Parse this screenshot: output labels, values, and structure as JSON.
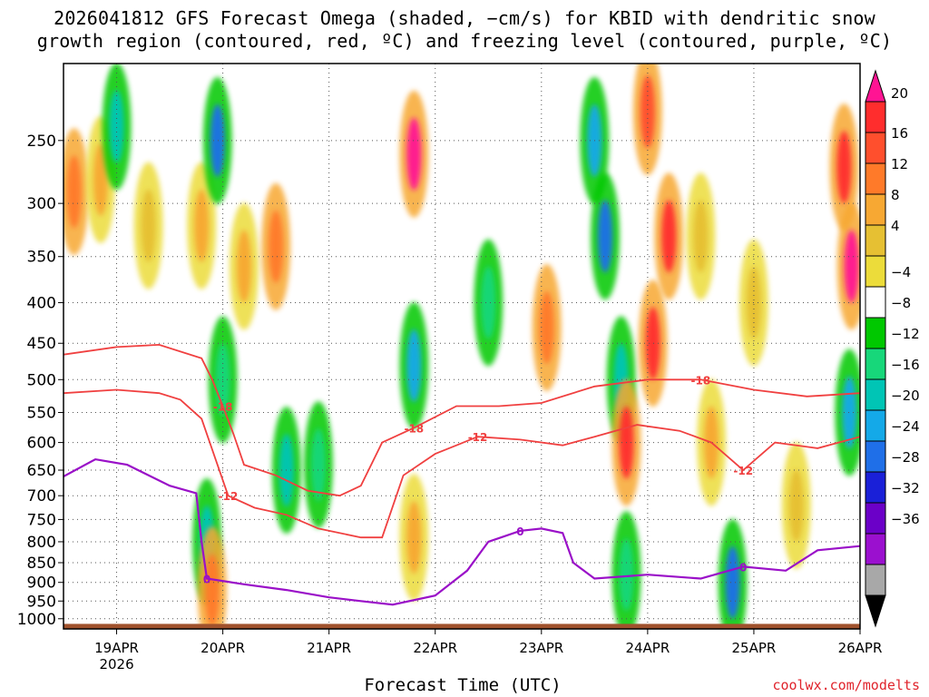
{
  "title_line1": "2026041812 GFS Forecast Omega (shaded, −cm/s) for KBID with dendritic snow",
  "title_line2": "growth region (contoured, red, ºC) and freezing level (contoured, purple, ºC)",
  "credit": "coolwx.com/modelts",
  "chart_data": {
    "type": "heatmap",
    "title": "2026041812 GFS Forecast Omega (shaded, −cm/s) for KBID with dendritic snow growth region (contoured, red, ºC) and freezing level (contoured, purple, ºC)",
    "xlabel": "Forecast Time (UTC)",
    "ylabel": "",
    "x_ticks": [
      {
        "t": 1,
        "label": "19APR",
        "sublabel": "2026"
      },
      {
        "t": 2,
        "label": "20APR"
      },
      {
        "t": 3,
        "label": "21APR"
      },
      {
        "t": 4,
        "label": "22APR"
      },
      {
        "t": 5,
        "label": "23APR"
      },
      {
        "t": 6,
        "label": "24APR"
      },
      {
        "t": 7,
        "label": "25APR"
      },
      {
        "t": 8,
        "label": "26APR"
      }
    ],
    "xlim": [
      0.5,
      8.0
    ],
    "y_ticks": [
      250,
      300,
      350,
      400,
      450,
      500,
      550,
      600,
      650,
      700,
      750,
      800,
      850,
      900,
      950,
      1000
    ],
    "ylim_hPa": [
      1030,
      200
    ],
    "colorbar": {
      "labels": [
        "20",
        "16",
        "12",
        "8",
        "4",
        "−4",
        "−8",
        "−12",
        "−16",
        "−20",
        "−24",
        "−28",
        "−32",
        "−36"
      ],
      "colors": [
        "#ff1493",
        "#ff2d2d",
        "#ff4f2d",
        "#ff7a29",
        "#f7a833",
        "#e6c033",
        "#ecdc3a",
        "#ffffff",
        "#00c800",
        "#17d77a",
        "#00c5b5",
        "#14a9e8",
        "#1f6fe8",
        "#1a20d8",
        "#6b00c8",
        "#9b10cf",
        "#a8a8a8",
        "#000000"
      ]
    },
    "omega_blobs": [
      {
        "t": 0.6,
        "p": 290,
        "v": 12
      },
      {
        "t": 0.85,
        "p": 280,
        "v": 8
      },
      {
        "t": 1.0,
        "p": 240,
        "v": -10
      },
      {
        "t": 1.3,
        "p": 320,
        "v": 6
      },
      {
        "t": 1.8,
        "p": 320,
        "v": 8
      },
      {
        "t": 1.95,
        "p": 250,
        "v": -18
      },
      {
        "t": 2.2,
        "p": 360,
        "v": 10
      },
      {
        "t": 2.5,
        "p": 340,
        "v": 12
      },
      {
        "t": 2.0,
        "p": 500,
        "v": -8
      },
      {
        "t": 1.85,
        "p": 800,
        "v": -10
      },
      {
        "t": 1.9,
        "p": 920,
        "v": 12
      },
      {
        "t": 2.6,
        "p": 650,
        "v": -10
      },
      {
        "t": 2.9,
        "p": 640,
        "v": -8
      },
      {
        "t": 3.8,
        "p": 260,
        "v": 20
      },
      {
        "t": 3.8,
        "p": 480,
        "v": -12
      },
      {
        "t": 3.8,
        "p": 790,
        "v": 10
      },
      {
        "t": 4.5,
        "p": 400,
        "v": -8
      },
      {
        "t": 5.05,
        "p": 430,
        "v": 12
      },
      {
        "t": 5.5,
        "p": 250,
        "v": -12
      },
      {
        "t": 5.6,
        "p": 330,
        "v": -16
      },
      {
        "t": 5.75,
        "p": 500,
        "v": -10
      },
      {
        "t": 5.8,
        "p": 600,
        "v": 16
      },
      {
        "t": 6.0,
        "p": 230,
        "v": 14
      },
      {
        "t": 6.05,
        "p": 450,
        "v": 16
      },
      {
        "t": 6.2,
        "p": 330,
        "v": 16
      },
      {
        "t": 5.8,
        "p": 880,
        "v": -8
      },
      {
        "t": 6.5,
        "p": 330,
        "v": 6
      },
      {
        "t": 6.6,
        "p": 600,
        "v": 8
      },
      {
        "t": 6.8,
        "p": 900,
        "v": -16
      },
      {
        "t": 7.0,
        "p": 400,
        "v": 6
      },
      {
        "t": 7.4,
        "p": 720,
        "v": 6
      },
      {
        "t": 7.85,
        "p": 270,
        "v": 16
      },
      {
        "t": 7.92,
        "p": 360,
        "v": 20
      },
      {
        "t": 7.9,
        "p": 550,
        "v": -12
      }
    ],
    "contours": [
      {
        "label": "-18",
        "color": "#f04040",
        "points": [
          [
            0.5,
            465
          ],
          [
            1.0,
            455
          ],
          [
            1.4,
            452
          ],
          [
            1.8,
            470
          ],
          [
            1.9,
            500
          ],
          [
            2.0,
            540
          ],
          [
            2.1,
            585
          ],
          [
            2.2,
            640
          ],
          [
            2.5,
            660
          ],
          [
            2.8,
            690
          ],
          [
            3.1,
            700
          ],
          [
            3.3,
            680
          ],
          [
            3.5,
            600
          ],
          [
            3.8,
            575
          ],
          [
            4.2,
            540
          ],
          [
            4.6,
            540
          ],
          [
            5.0,
            535
          ],
          [
            5.5,
            510
          ],
          [
            6.0,
            500
          ],
          [
            6.5,
            500
          ],
          [
            7.0,
            515
          ],
          [
            7.5,
            525
          ],
          [
            8.0,
            520
          ]
        ]
      },
      {
        "label": "-12",
        "color": "#f04040",
        "points": [
          [
            0.5,
            520
          ],
          [
            1.0,
            515
          ],
          [
            1.4,
            520
          ],
          [
            1.6,
            530
          ],
          [
            1.8,
            560
          ],
          [
            1.95,
            640
          ],
          [
            2.05,
            700
          ],
          [
            2.3,
            725
          ],
          [
            2.6,
            740
          ],
          [
            2.9,
            770
          ],
          [
            3.3,
            790
          ],
          [
            3.5,
            790
          ],
          [
            3.7,
            660
          ],
          [
            4.0,
            620
          ],
          [
            4.4,
            590
          ],
          [
            4.8,
            595
          ],
          [
            5.2,
            605
          ],
          [
            5.5,
            590
          ],
          [
            5.9,
            570
          ],
          [
            6.3,
            580
          ],
          [
            6.6,
            600
          ],
          [
            6.9,
            650
          ],
          [
            7.2,
            600
          ],
          [
            7.6,
            610
          ],
          [
            8.0,
            590
          ]
        ]
      },
      {
        "label": "0",
        "color": "#9a10c8",
        "points": [
          [
            0.5,
            662
          ],
          [
            0.8,
            630
          ],
          [
            1.1,
            640
          ],
          [
            1.5,
            680
          ],
          [
            1.75,
            695
          ],
          [
            1.8,
            800
          ],
          [
            1.85,
            890
          ],
          [
            2.2,
            905
          ],
          [
            2.6,
            920
          ],
          [
            3.0,
            940
          ],
          [
            3.3,
            950
          ],
          [
            3.6,
            960
          ],
          [
            4.0,
            935
          ],
          [
            4.3,
            870
          ],
          [
            4.5,
            800
          ],
          [
            4.8,
            775
          ],
          [
            5.0,
            770
          ],
          [
            5.2,
            780
          ],
          [
            5.3,
            850
          ],
          [
            5.5,
            890
          ],
          [
            6.0,
            880
          ],
          [
            6.5,
            890
          ],
          [
            6.9,
            860
          ],
          [
            7.3,
            870
          ],
          [
            7.6,
            820
          ],
          [
            8.0,
            810
          ]
        ]
      }
    ],
    "ground_hPa": 1015
  }
}
